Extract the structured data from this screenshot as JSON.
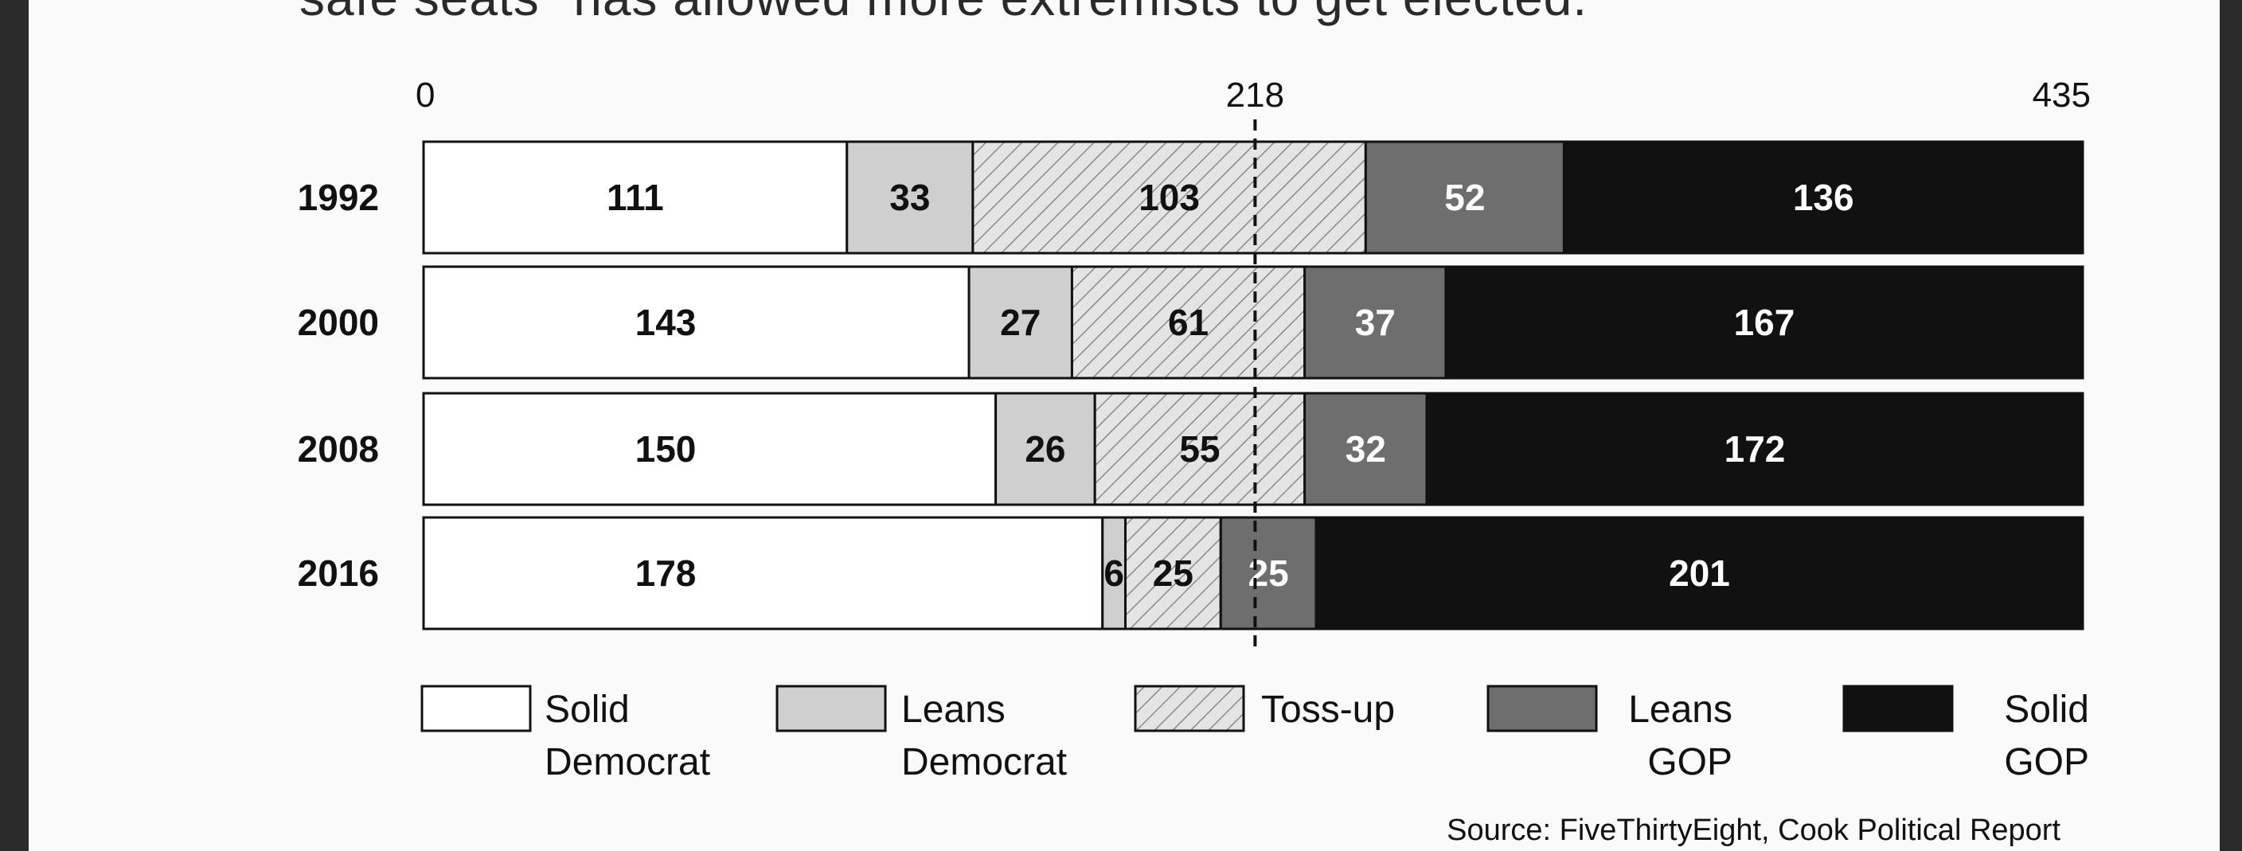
{
  "headline_fragment": "safe seats\" has allowed more extremists to get elected.",
  "source": "Source: FiveThirtyEight, Cook Political Report",
  "chart_data": {
    "type": "bar",
    "orientation": "horizontal",
    "stacked": true,
    "xlim": [
      0,
      435
    ],
    "xticks": [
      "0",
      "218",
      "435"
    ],
    "reference_line": 218,
    "categories": [
      "1992",
      "2000",
      "2008",
      "2016"
    ],
    "series": [
      {
        "name": "Solid Democrat",
        "legend_lines": [
          "Solid",
          "Democrat"
        ],
        "fill": "#ffffff",
        "label_color": "#111111",
        "values": [
          111,
          143,
          150,
          178
        ]
      },
      {
        "name": "Leans Democrat",
        "legend_lines": [
          "Leans",
          "Democrat"
        ],
        "fill": "#cfcfcf",
        "label_color": "#111111",
        "values": [
          33,
          27,
          26,
          6
        ]
      },
      {
        "name": "Toss-up",
        "legend_lines": [
          "Toss-up"
        ],
        "fill": "hatch",
        "label_color": "#111111",
        "values": [
          103,
          61,
          55,
          25
        ]
      },
      {
        "name": "Leans GOP",
        "legend_lines": [
          "Leans",
          "GOP"
        ],
        "fill": "#6e6e6e",
        "label_color": "#ffffff",
        "values": [
          52,
          37,
          32,
          25
        ]
      },
      {
        "name": "Solid GOP",
        "legend_lines": [
          "Solid",
          "GOP"
        ],
        "fill": "#111111",
        "label_color": "#ffffff",
        "values": [
          136,
          167,
          172,
          201
        ]
      }
    ],
    "legend_position": "bottom"
  }
}
